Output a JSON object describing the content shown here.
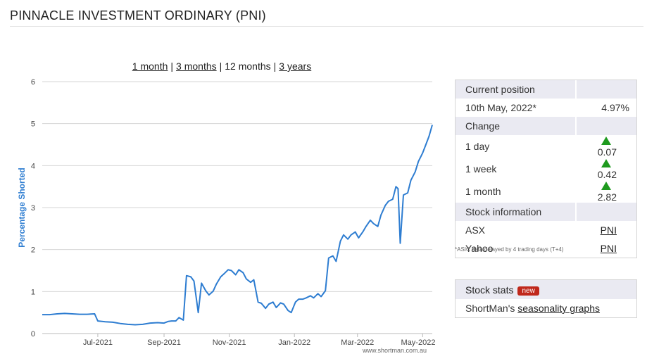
{
  "page": {
    "title": "PINNACLE INVESTMENT ORDINARY (PNI)"
  },
  "ranges": [
    {
      "label": "1 month",
      "link": true
    },
    {
      "label": "3 months",
      "link": true
    },
    {
      "label": "12 months",
      "link": false
    },
    {
      "label": "3 years",
      "link": true
    }
  ],
  "chart_data": {
    "type": "line",
    "ylabel": "Percentage Shorted",
    "xlabel": "",
    "ylim": [
      0,
      6
    ],
    "yticks": [
      "0",
      "1",
      "2",
      "3",
      "4",
      "5",
      "6"
    ],
    "xlim": [
      "2021-05-10",
      "2022-05-10"
    ],
    "xticks": [
      {
        "label": "Jul-2021",
        "date": "2021-07-01"
      },
      {
        "label": "Sep-2021",
        "date": "2021-09-01"
      },
      {
        "label": "Nov-2021",
        "date": "2021-11-01"
      },
      {
        "label": "Jan-2022",
        "date": "2022-01-01"
      },
      {
        "label": "Mar-2022",
        "date": "2022-03-01"
      },
      {
        "label": "May-2022",
        "date": "2022-05-01"
      }
    ],
    "watermark": "www.shortman.com.au",
    "color": "#2e7dd1",
    "grid": true,
    "series": [
      {
        "x": [
          "2021-05-10",
          "2021-05-17",
          "2021-05-24",
          "2021-05-31",
          "2021-06-07",
          "2021-06-14",
          "2021-06-21",
          "2021-06-28",
          "2021-07-01",
          "2021-07-08",
          "2021-07-15",
          "2021-07-22",
          "2021-07-29",
          "2021-08-05",
          "2021-08-12",
          "2021-08-19",
          "2021-08-26",
          "2021-09-01",
          "2021-09-05",
          "2021-09-08",
          "2021-09-12",
          "2021-09-15",
          "2021-09-19",
          "2021-09-22",
          "2021-09-26",
          "2021-09-29",
          "2021-10-03",
          "2021-10-06",
          "2021-10-10",
          "2021-10-13",
          "2021-10-17",
          "2021-10-20",
          "2021-10-24",
          "2021-10-27",
          "2021-10-31",
          "2021-11-03",
          "2021-11-07",
          "2021-11-10",
          "2021-11-14",
          "2021-11-17",
          "2021-11-21",
          "2021-11-24",
          "2021-11-28",
          "2021-12-01",
          "2021-12-05",
          "2021-12-08",
          "2021-12-12",
          "2021-12-15",
          "2021-12-19",
          "2021-12-22",
          "2021-12-26",
          "2021-12-29",
          "2022-01-02",
          "2022-01-05",
          "2022-01-09",
          "2022-01-12",
          "2022-01-16",
          "2022-01-19",
          "2022-01-23",
          "2022-01-26",
          "2022-01-30",
          "2022-02-02",
          "2022-02-06",
          "2022-02-09",
          "2022-02-13",
          "2022-02-16",
          "2022-02-20",
          "2022-02-23",
          "2022-02-27",
          "2022-03-02",
          "2022-03-06",
          "2022-03-09",
          "2022-03-13",
          "2022-03-16",
          "2022-03-20",
          "2022-03-23",
          "2022-03-27",
          "2022-03-30",
          "2022-04-03",
          "2022-04-06",
          "2022-04-08",
          "2022-04-10",
          "2022-04-13",
          "2022-04-17",
          "2022-04-20",
          "2022-04-24",
          "2022-04-27",
          "2022-05-01",
          "2022-05-04",
          "2022-05-07",
          "2022-05-10"
        ],
        "y": [
          0.45,
          0.45,
          0.47,
          0.48,
          0.47,
          0.46,
          0.46,
          0.47,
          0.3,
          0.28,
          0.27,
          0.24,
          0.22,
          0.21,
          0.22,
          0.25,
          0.26,
          0.25,
          0.29,
          0.3,
          0.3,
          0.38,
          0.32,
          1.38,
          1.35,
          1.25,
          0.5,
          1.2,
          1.02,
          0.92,
          1.01,
          1.18,
          1.35,
          1.42,
          1.52,
          1.5,
          1.4,
          1.52,
          1.45,
          1.3,
          1.22,
          1.28,
          0.75,
          0.72,
          0.6,
          0.7,
          0.75,
          0.62,
          0.73,
          0.7,
          0.55,
          0.5,
          0.75,
          0.82,
          0.82,
          0.85,
          0.9,
          0.85,
          0.95,
          0.88,
          1.02,
          1.8,
          1.85,
          1.72,
          2.2,
          2.35,
          2.25,
          2.35,
          2.42,
          2.28,
          2.42,
          2.55,
          2.7,
          2.62,
          2.55,
          2.82,
          3.05,
          3.15,
          3.2,
          3.5,
          3.45,
          2.15,
          3.3,
          3.35,
          3.65,
          3.85,
          4.1,
          4.3,
          4.5,
          4.7,
          4.97
        ]
      }
    ]
  },
  "position": {
    "header": "Current position",
    "date": "10th May, 2022*",
    "value": "4.97%"
  },
  "change": {
    "header": "Change",
    "rows": [
      {
        "label": "1 day",
        "value": "0.07",
        "direction": "up"
      },
      {
        "label": "1 week",
        "value": "0.42",
        "direction": "up"
      },
      {
        "label": "1 month",
        "value": "2.82",
        "direction": "up"
      }
    ]
  },
  "stock_info": {
    "header": "Stock information",
    "rows": [
      {
        "label": "ASX",
        "link": "PNI"
      },
      {
        "label": "Yahoo",
        "link": "PNI"
      }
    ]
  },
  "note": "*ASIC data delayed by 4 trading days (T+4)",
  "stats": {
    "header": "Stock stats",
    "badge": "new",
    "text_prefix": "ShortMan's ",
    "link": "seasonality graphs"
  }
}
